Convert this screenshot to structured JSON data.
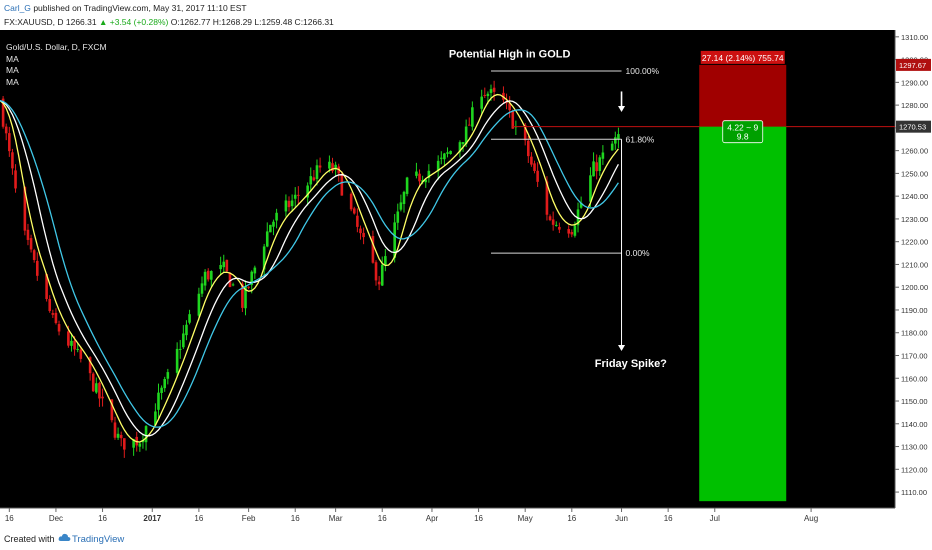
{
  "header": {
    "author": "Carl_G",
    "published": "published on TradingView.com, May 31, 2017 11:10 EST",
    "quote_prefix": "FX:XAUUSD, D  1266.31",
    "quote_change": "▲ +3.54 (+0.28%)",
    "quote_ohlc": "O:1262.77  H:1268.29  L:1259.48  C:1266.31"
  },
  "legend": {
    "title": "Gold/U.S. Dollar, D, FXCM",
    "items": [
      "MA",
      "MA",
      "MA"
    ]
  },
  "footer": {
    "created_with": "Created with",
    "brand": "TradingView"
  },
  "colors": {
    "background": "#000000",
    "up": "#1fd61f",
    "down": "#e01b1b",
    "ma_fast": "#ffff66",
    "ma_mid": "#ffffff",
    "ma_slow": "#40c8e8",
    "target_zone": "#00c000",
    "stop_zone": "#a00000"
  },
  "chart_data": {
    "type": "candlestick",
    "symbol": "FX:XAUUSD",
    "timeframe": "D",
    "x_range": [
      "2016-11-13",
      "2017-08-28"
    ],
    "ylim": [
      1103,
      1313
    ],
    "y_ticks": [
      1110,
      1120,
      1130,
      1140,
      1150,
      1160,
      1170,
      1180,
      1190,
      1200,
      1210,
      1220,
      1230,
      1240,
      1250,
      1260,
      1270,
      1280,
      1290,
      1300,
      1310
    ],
    "x_ticks": [
      {
        "date": "2016-11-16",
        "label": "16"
      },
      {
        "date": "2016-12-01",
        "label": "Dec"
      },
      {
        "date": "2016-12-16",
        "label": "16"
      },
      {
        "date": "2017-01-01",
        "label": "2017"
      },
      {
        "date": "2017-01-16",
        "label": "16"
      },
      {
        "date": "2017-02-01",
        "label": "Feb"
      },
      {
        "date": "2017-02-16",
        "label": "16"
      },
      {
        "date": "2017-03-01",
        "label": "Mar"
      },
      {
        "date": "2017-03-16",
        "label": "16"
      },
      {
        "date": "2017-04-01",
        "label": "Apr"
      },
      {
        "date": "2017-04-16",
        "label": "16"
      },
      {
        "date": "2017-05-01",
        "label": "May"
      },
      {
        "date": "2017-05-16",
        "label": "16"
      },
      {
        "date": "2017-06-01",
        "label": "Jun"
      },
      {
        "date": "2017-06-16",
        "label": "16"
      },
      {
        "date": "2017-07-01",
        "label": "Jul"
      },
      {
        "date": "2017-08-01",
        "label": "Aug"
      }
    ],
    "price_path": [
      [
        "2016-11-13",
        1282
      ],
      [
        "2016-11-20",
        1226
      ],
      [
        "2016-11-30",
        1185
      ],
      [
        "2016-12-10",
        1166
      ],
      [
        "2016-12-22",
        1131
      ],
      [
        "2016-12-28",
        1133
      ],
      [
        "2017-01-06",
        1160
      ],
      [
        "2017-01-18",
        1205
      ],
      [
        "2017-01-24",
        1208
      ],
      [
        "2017-01-30",
        1193
      ],
      [
        "2017-02-08",
        1228
      ],
      [
        "2017-02-16",
        1239
      ],
      [
        "2017-02-25",
        1254
      ],
      [
        "2017-03-01",
        1251
      ],
      [
        "2017-03-09",
        1222
      ],
      [
        "2017-03-15",
        1203
      ],
      [
        "2017-03-24",
        1245
      ],
      [
        "2017-04-04",
        1255
      ],
      [
        "2017-04-12",
        1268
      ],
      [
        "2017-04-17",
        1287
      ],
      [
        "2017-04-24",
        1281
      ],
      [
        "2017-05-01",
        1262
      ],
      [
        "2017-05-09",
        1229
      ],
      [
        "2017-05-16",
        1226
      ],
      [
        "2017-05-23",
        1252
      ],
      [
        "2017-05-31",
        1266
      ]
    ],
    "moving_averages": [
      {
        "name": "MA",
        "color": "#ffff66",
        "lag_days": 3
      },
      {
        "name": "MA",
        "color": "#ffffff",
        "lag_days": 6
      },
      {
        "name": "MA",
        "color": "#40c8e8",
        "lag_days": 9
      }
    ],
    "price_markers": [
      {
        "value": 1297.67,
        "label": "1297.67",
        "color": "#b01010"
      },
      {
        "value": 1270.53,
        "label": "1270.53",
        "color": "#333333"
      }
    ],
    "horizontal_line": {
      "value": 1270.53,
      "from": "2017-04-27",
      "color": "#c01010"
    },
    "fibonacci": {
      "from": "2017-04-20",
      "to": "2017-06-01",
      "levels": [
        {
          "label": "100.00%",
          "value": 1295
        },
        {
          "label": "61.80%",
          "value": 1265
        },
        {
          "label": "0.00%",
          "value": 1215
        }
      ]
    },
    "position": {
      "from": "2017-06-26",
      "to": "2017-07-24",
      "entry": 1270.53,
      "stop": 1297.67,
      "target": 1106,
      "stop_label": "27.14 (2.14%) 755.74",
      "ratio_label_1": "4.22 ~ 9",
      "ratio_label_2": "9.8"
    },
    "annotations": [
      {
        "text": "Potential High in GOLD",
        "date": "2017-04-26",
        "value": 1301
      },
      {
        "text": "Friday Spike?",
        "date": "2017-06-04",
        "value": 1165
      }
    ],
    "arrows": [
      {
        "date": "2017-06-01",
        "from": 1286,
        "to": 1277
      },
      {
        "date": "2017-06-01",
        "from": 1265,
        "to": 1172
      }
    ]
  }
}
